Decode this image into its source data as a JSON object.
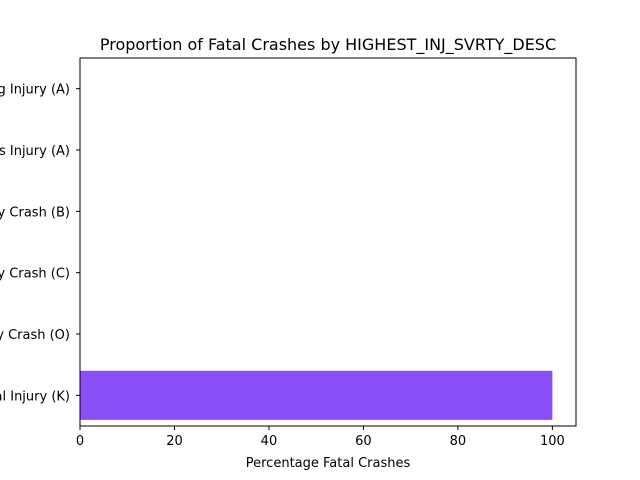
{
  "chart_data": {
    "type": "bar",
    "orientation": "horizontal",
    "title": "Proportion of Fatal Crashes by HIGHEST_INJ_SVRTY_DESC",
    "xlabel": "Percentage Fatal Crashes",
    "ylabel": "",
    "xlim": [
      0,
      105
    ],
    "xticks": [
      0,
      20,
      40,
      60,
      80,
      100
    ],
    "grid": false,
    "categories": [
      "Fatal Injury (K)",
      "No Injury Crash (O)",
      "Possible Injury Crash (C)",
      "Non-Incapacitating Injury Crash (B)",
      "Suspected Serious Injury (A)",
      "Incapacitating Injury (A)"
    ],
    "values": [
      100,
      0,
      0,
      0,
      0,
      0
    ],
    "bar_color": "#8950f7"
  }
}
